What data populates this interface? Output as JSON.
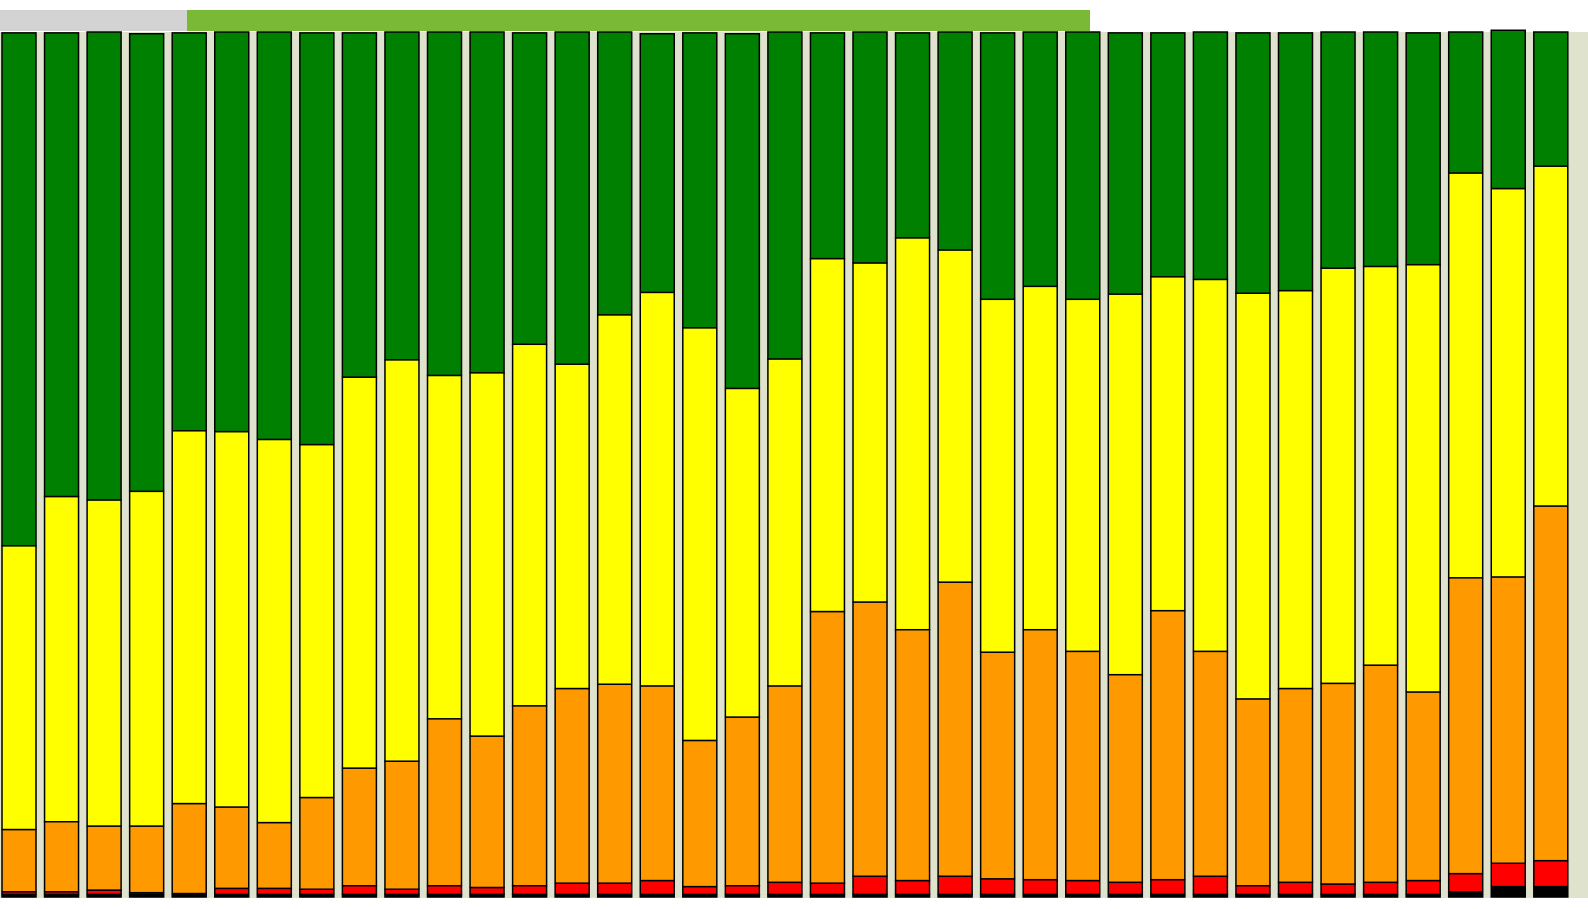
{
  "chart_data": {
    "type": "stacked_bar",
    "categories": [
      null,
      null,
      null,
      null,
      null,
      null,
      null,
      null,
      null,
      null,
      null,
      null,
      null,
      null,
      null,
      null,
      null,
      null,
      null,
      null,
      null,
      null,
      null,
      null,
      null,
      null,
      null,
      null,
      null,
      null,
      null,
      null,
      null,
      null,
      null,
      null,
      null
    ],
    "ylim": [
      0,
      100
    ],
    "series": [
      {
        "color": "#000000",
        "values": [
          0.3,
          0.3,
          0.3,
          0.3,
          0.3,
          0.3,
          0.3,
          0.3,
          0.3,
          0.3,
          0.3,
          0.3,
          0.3,
          0.3,
          0.3,
          0.3,
          0.3,
          0.3,
          0.3,
          0.3,
          0.3,
          0.3,
          0.3,
          0.3,
          0.3,
          0.3,
          0.3,
          0.3,
          0.3,
          0.3,
          0.3,
          0.3,
          0.3,
          0.3,
          0.6,
          1.2,
          1.2
        ]
      },
      {
        "color": "#ff0000",
        "values": [
          0.3,
          0.3,
          0.5,
          0.2,
          0.1,
          0.7,
          0.7,
          0.6,
          1.0,
          0.6,
          1.0,
          0.8,
          1.0,
          1.3,
          1.3,
          1.6,
          0.9,
          1.0,
          1.4,
          1.3,
          2.1,
          1.6,
          2.1,
          1.8,
          1.7,
          1.6,
          1.4,
          1.7,
          2.1,
          1.0,
          1.4,
          1.2,
          1.4,
          1.6,
          2.1,
          2.7,
          3.0
        ]
      },
      {
        "color": "#ff9900",
        "values": [
          7.2,
          8.1,
          7.4,
          7.7,
          10.4,
          9.4,
          7.6,
          10.6,
          13.6,
          14.8,
          19.3,
          17.5,
          20.8,
          22.5,
          23.0,
          22.5,
          16.9,
          19.5,
          22.7,
          31.4,
          31.7,
          29.0,
          34.0,
          26.2,
          28.9,
          26.5,
          24.0,
          31.1,
          26.0,
          21.6,
          22.4,
          23.2,
          25.1,
          21.8,
          34.2,
          33.1,
          41.0
        ]
      },
      {
        "color": "#ffff00",
        "values": [
          32.8,
          37.6,
          37.7,
          38.7,
          43.1,
          43.4,
          44.3,
          40.8,
          45.2,
          46.4,
          39.7,
          42.0,
          41.8,
          37.5,
          42.7,
          45.5,
          47.7,
          38.0,
          37.8,
          40.8,
          39.2,
          45.3,
          38.4,
          40.8,
          39.7,
          40.7,
          44.0,
          38.6,
          43.0,
          46.9,
          46.0,
          48.0,
          46.1,
          49.4,
          46.8,
          44.9,
          39.3
        ]
      },
      {
        "color": "#008000",
        "values": [
          59.3,
          53.6,
          54.1,
          52.9,
          46.0,
          46.2,
          47.1,
          47.6,
          39.8,
          37.9,
          39.7,
          39.4,
          36.0,
          38.4,
          32.7,
          29.9,
          34.1,
          41.0,
          37.8,
          26.1,
          26.7,
          23.7,
          25.2,
          30.8,
          29.4,
          30.9,
          30.2,
          28.2,
          28.6,
          30.1,
          29.8,
          27.3,
          27.1,
          26.8,
          16.3,
          18.3,
          15.5
        ]
      }
    ]
  }
}
